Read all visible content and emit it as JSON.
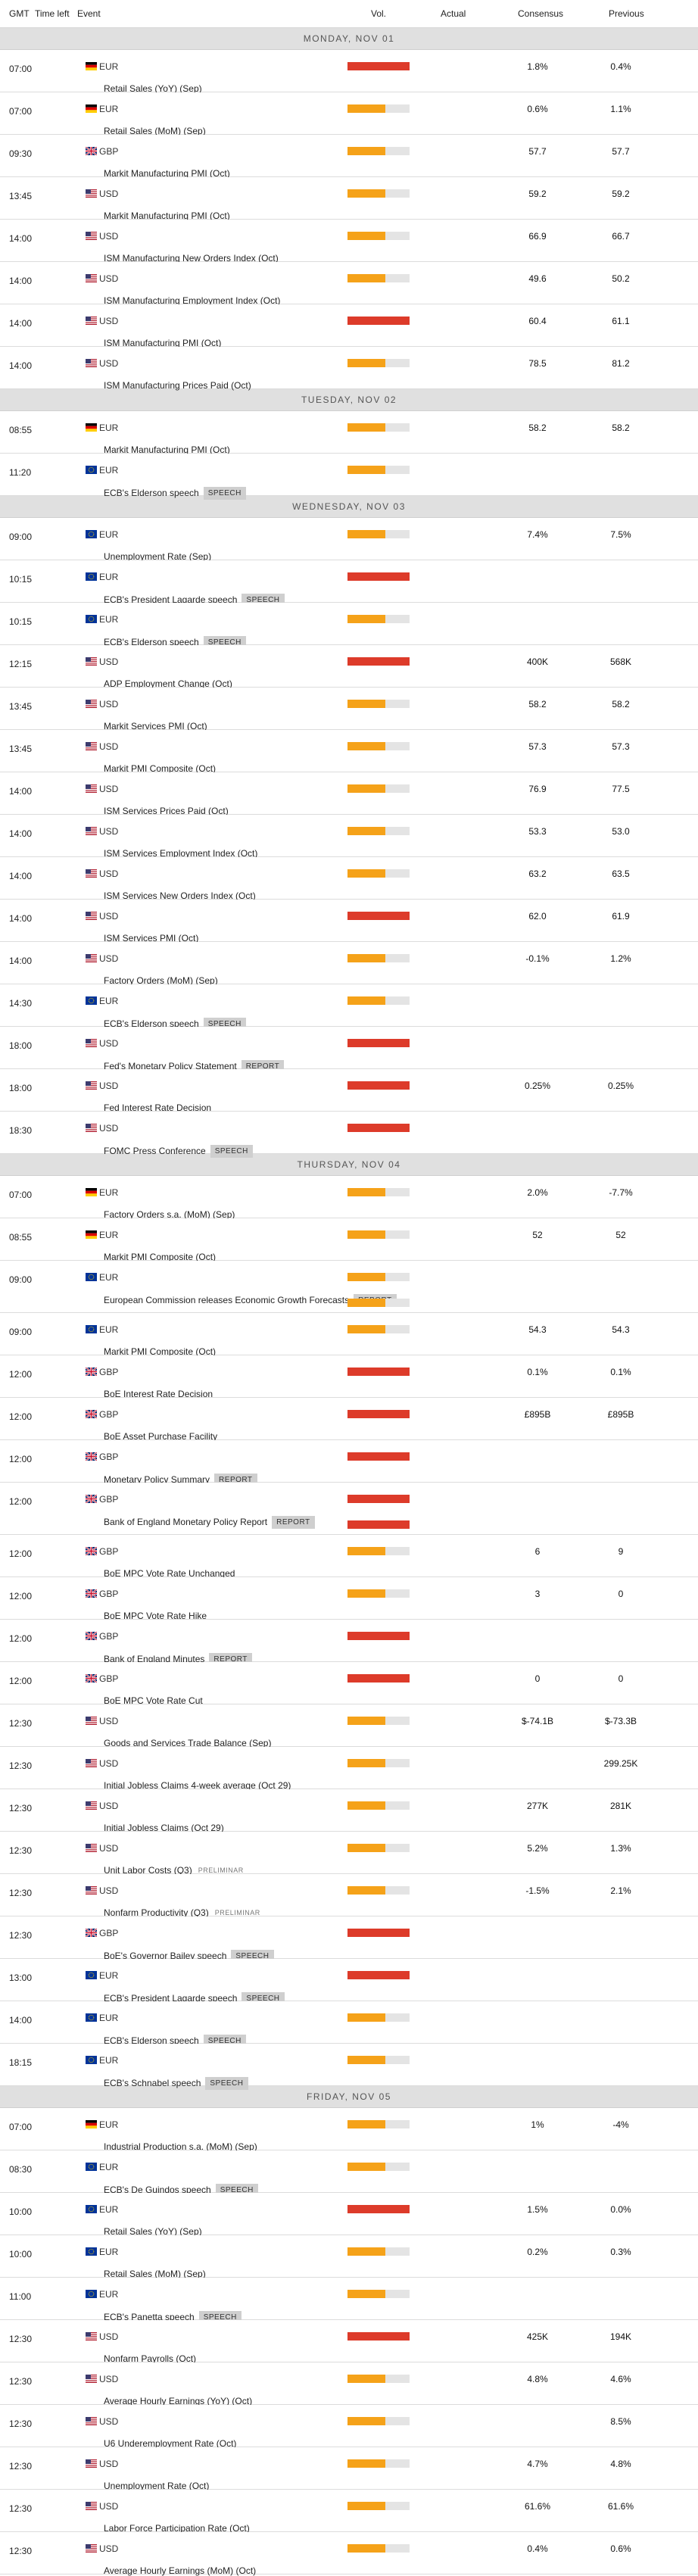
{
  "header": {
    "gmt": "GMT",
    "time_left": "Time left",
    "event": "Event",
    "vol": "Vol.",
    "actual": "Actual",
    "consensus": "Consensus",
    "previous": "Previous"
  },
  "colors": {
    "high": "#dd3b2a",
    "medium": "#f5a219",
    "bar_bg": "#e4e4e4",
    "day_bg": "#e0e0e0"
  },
  "days": [
    {
      "label": "MONDAY, NOV 01",
      "rows": [
        {
          "time": "07:00",
          "cur": "EUR",
          "flag": "de",
          "event": "Retail Sales (YoY) (Sep)",
          "vol": "high",
          "cons": "1.8%",
          "prev": "0.4%"
        },
        {
          "time": "07:00",
          "cur": "EUR",
          "flag": "de",
          "event": "Retail Sales (MoM) (Sep)",
          "vol": "med",
          "cons": "0.6%",
          "prev": "1.1%"
        },
        {
          "time": "09:30",
          "cur": "GBP",
          "flag": "gb",
          "event": "Markit Manufacturing PMI (Oct)",
          "vol": "med",
          "cons": "57.7",
          "prev": "57.7"
        },
        {
          "time": "13:45",
          "cur": "USD",
          "flag": "us",
          "event": "Markit Manufacturing PMI (Oct)",
          "vol": "med",
          "cons": "59.2",
          "prev": "59.2"
        },
        {
          "time": "14:00",
          "cur": "USD",
          "flag": "us",
          "event": "ISM Manufacturing New Orders Index (Oct)",
          "vol": "med",
          "cons": "66.9",
          "prev": "66.7"
        },
        {
          "time": "14:00",
          "cur": "USD",
          "flag": "us",
          "event": "ISM Manufacturing Employment Index (Oct)",
          "vol": "med",
          "cons": "49.6",
          "prev": "50.2"
        },
        {
          "time": "14:00",
          "cur": "USD",
          "flag": "us",
          "event": "ISM Manufacturing PMI (Oct)",
          "vol": "high",
          "cons": "60.4",
          "prev": "61.1"
        },
        {
          "time": "14:00",
          "cur": "USD",
          "flag": "us",
          "event": "ISM Manufacturing Prices Paid (Oct)",
          "vol": "med",
          "cons": "78.5",
          "prev": "81.2"
        }
      ]
    },
    {
      "label": "TUESDAY, NOV 02",
      "rows": [
        {
          "time": "08:55",
          "cur": "EUR",
          "flag": "de",
          "event": "Markit Manufacturing PMI (Oct)",
          "vol": "med",
          "cons": "58.2",
          "prev": "58.2"
        },
        {
          "time": "11:20",
          "cur": "EUR",
          "flag": "eu",
          "event": "ECB's Elderson speech",
          "tag": "SPEECH",
          "vol": "med",
          "cons": "",
          "prev": ""
        }
      ]
    },
    {
      "label": "WEDNESDAY, NOV 03",
      "rows": [
        {
          "time": "09:00",
          "cur": "EUR",
          "flag": "eu",
          "event": "Unemployment Rate (Sep)",
          "vol": "med",
          "cons": "7.4%",
          "prev": "7.5%"
        },
        {
          "time": "10:15",
          "cur": "EUR",
          "flag": "eu",
          "event": "ECB's President Lagarde speech",
          "tag": "SPEECH",
          "vol": "high",
          "cons": "",
          "prev": ""
        },
        {
          "time": "10:15",
          "cur": "EUR",
          "flag": "eu",
          "event": "ECB's Elderson speech",
          "tag": "SPEECH",
          "vol": "med",
          "cons": "",
          "prev": ""
        },
        {
          "time": "12:15",
          "cur": "USD",
          "flag": "us",
          "event": "ADP Employment Change (Oct)",
          "vol": "high",
          "cons": "400K",
          "prev": "568K"
        },
        {
          "time": "13:45",
          "cur": "USD",
          "flag": "us",
          "event": "Markit Services PMI (Oct)",
          "vol": "med",
          "cons": "58.2",
          "prev": "58.2"
        },
        {
          "time": "13:45",
          "cur": "USD",
          "flag": "us",
          "event": "Markit PMI Composite (Oct)",
          "vol": "med",
          "cons": "57.3",
          "prev": "57.3"
        },
        {
          "time": "14:00",
          "cur": "USD",
          "flag": "us",
          "event": "ISM Services Prices Paid (Oct)",
          "vol": "med",
          "cons": "76.9",
          "prev": "77.5"
        },
        {
          "time": "14:00",
          "cur": "USD",
          "flag": "us",
          "event": "ISM Services Employment Index (Oct)",
          "vol": "med",
          "cons": "53.3",
          "prev": "53.0"
        },
        {
          "time": "14:00",
          "cur": "USD",
          "flag": "us",
          "event": "ISM Services New Orders Index (Oct)",
          "vol": "med",
          "cons": "63.2",
          "prev": "63.5"
        },
        {
          "time": "14:00",
          "cur": "USD",
          "flag": "us",
          "event": "ISM Services PMI (Oct)",
          "vol": "high",
          "cons": "62.0",
          "prev": "61.9"
        },
        {
          "time": "14:00",
          "cur": "USD",
          "flag": "us",
          "event": "Factory Orders (MoM) (Sep)",
          "vol": "med",
          "cons": "-0.1%",
          "prev": "1.2%"
        },
        {
          "time": "14:30",
          "cur": "EUR",
          "flag": "eu",
          "event": "ECB's Elderson speech",
          "tag": "SPEECH",
          "vol": "med",
          "cons": "",
          "prev": ""
        },
        {
          "time": "18:00",
          "cur": "USD",
          "flag": "us",
          "event": "Fed's Monetary Policy Statement",
          "tag": "REPORT",
          "vol": "high",
          "cons": "",
          "prev": ""
        },
        {
          "time": "18:00",
          "cur": "USD",
          "flag": "us",
          "event": "Fed Interest Rate Decision",
          "vol": "high",
          "cons": "0.25%",
          "prev": "0.25%"
        },
        {
          "time": "18:30",
          "cur": "USD",
          "flag": "us",
          "event": "FOMC Press Conference",
          "tag": "SPEECH",
          "vol": "high",
          "cons": "",
          "prev": ""
        }
      ]
    },
    {
      "label": "THURSDAY, NOV 04",
      "rows": [
        {
          "time": "07:00",
          "cur": "EUR",
          "flag": "de",
          "event": "Factory Orders s.a. (MoM) (Sep)",
          "vol": "med",
          "cons": "2.0%",
          "prev": "-7.7%"
        },
        {
          "time": "08:55",
          "cur": "EUR",
          "flag": "de",
          "event": "Markit PMI Composite (Oct)",
          "vol": "med",
          "cons": "52",
          "prev": "52"
        },
        {
          "time": "09:00",
          "cur": "EUR",
          "flag": "eu",
          "event": "European Commission releases Economic Growth Forecasts",
          "tag": "REPORT",
          "vol": "med",
          "cons": "",
          "prev": ""
        },
        {
          "time": "09:00",
          "cur": "EUR",
          "flag": "eu",
          "event": "Markit PMI Composite (Oct)",
          "vol": "med",
          "cons": "54.3",
          "prev": "54.3"
        },
        {
          "time": "12:00",
          "cur": "GBP",
          "flag": "gb",
          "event": "BoE Interest Rate Decision",
          "vol": "high",
          "cons": "0.1%",
          "prev": "0.1%"
        },
        {
          "time": "12:00",
          "cur": "GBP",
          "flag": "gb",
          "event": "BoE Asset Purchase Facility",
          "vol": "high",
          "cons": "£895B",
          "prev": "£895B"
        },
        {
          "time": "12:00",
          "cur": "GBP",
          "flag": "gb",
          "event": "Monetary Policy Summary",
          "tag": "REPORT",
          "vol": "high",
          "cons": "",
          "prev": ""
        },
        {
          "time": "12:00",
          "cur": "GBP",
          "flag": "gb",
          "event": "Bank of England Monetary Policy Report",
          "tag": "REPORT",
          "vol": "high",
          "cons": "",
          "prev": ""
        },
        {
          "time": "12:00",
          "cur": "GBP",
          "flag": "gb",
          "event": "BoE MPC Vote Rate Unchanged",
          "vol": "med",
          "cons": "6",
          "prev": "9"
        },
        {
          "time": "12:00",
          "cur": "GBP",
          "flag": "gb",
          "event": "BoE MPC Vote Rate Hike",
          "vol": "med",
          "cons": "3",
          "prev": "0"
        },
        {
          "time": "12:00",
          "cur": "GBP",
          "flag": "gb",
          "event": "Bank of England Minutes",
          "tag": "REPORT",
          "vol": "high",
          "cons": "",
          "prev": ""
        },
        {
          "time": "12:00",
          "cur": "GBP",
          "flag": "gb",
          "event": "BoE MPC Vote Rate Cut",
          "vol": "high",
          "cons": "0",
          "prev": "0"
        },
        {
          "time": "12:30",
          "cur": "USD",
          "flag": "us",
          "event": "Goods and Services Trade Balance (Sep)",
          "vol": "med",
          "cons": "$-74.1B",
          "prev": "$-73.3B"
        },
        {
          "time": "12:30",
          "cur": "USD",
          "flag": "us",
          "event": "Initial Jobless Claims 4-week average (Oct 29)",
          "vol": "med",
          "cons": "",
          "prev": "299.25K"
        },
        {
          "time": "12:30",
          "cur": "USD",
          "flag": "us",
          "event": "Initial Jobless Claims (Oct 29)",
          "vol": "med",
          "cons": "277K",
          "prev": "281K"
        },
        {
          "time": "12:30",
          "cur": "USD",
          "flag": "us",
          "event": "Unit Labor Costs (Q3)",
          "tagp": "PRELIMINAR",
          "vol": "med",
          "cons": "5.2%",
          "prev": "1.3%"
        },
        {
          "time": "12:30",
          "cur": "USD",
          "flag": "us",
          "event": "Nonfarm Productivity (Q3)",
          "tagp": "PRELIMINAR",
          "vol": "med",
          "cons": "-1.5%",
          "prev": "2.1%"
        },
        {
          "time": "12:30",
          "cur": "GBP",
          "flag": "gb",
          "event": "BoE's Governor Bailey speech",
          "tag": "SPEECH",
          "vol": "high",
          "cons": "",
          "prev": ""
        },
        {
          "time": "13:00",
          "cur": "EUR",
          "flag": "eu",
          "event": "ECB's President Lagarde speech",
          "tag": "SPEECH",
          "vol": "high",
          "cons": "",
          "prev": ""
        },
        {
          "time": "14:00",
          "cur": "EUR",
          "flag": "eu",
          "event": "ECB's Elderson speech",
          "tag": "SPEECH",
          "vol": "med",
          "cons": "",
          "prev": ""
        },
        {
          "time": "18:15",
          "cur": "EUR",
          "flag": "eu",
          "event": "ECB's Schnabel speech",
          "tag": "SPEECH",
          "vol": "med",
          "cons": "",
          "prev": ""
        }
      ]
    },
    {
      "label": "FRIDAY, NOV 05",
      "rows": [
        {
          "time": "07:00",
          "cur": "EUR",
          "flag": "de",
          "event": "Industrial Production s.a. (MoM) (Sep)",
          "vol": "med",
          "cons": "1%",
          "prev": "-4%"
        },
        {
          "time": "08:30",
          "cur": "EUR",
          "flag": "eu",
          "event": "ECB's De Guindos speech",
          "tag": "SPEECH",
          "vol": "med",
          "cons": "",
          "prev": ""
        },
        {
          "time": "10:00",
          "cur": "EUR",
          "flag": "eu",
          "event": "Retail Sales (YoY) (Sep)",
          "vol": "high",
          "cons": "1.5%",
          "prev": "0.0%"
        },
        {
          "time": "10:00",
          "cur": "EUR",
          "flag": "eu",
          "event": "Retail Sales (MoM) (Sep)",
          "vol": "med",
          "cons": "0.2%",
          "prev": "0.3%"
        },
        {
          "time": "11:00",
          "cur": "EUR",
          "flag": "eu",
          "event": "ECB's Panetta speech",
          "tag": "SPEECH",
          "vol": "med",
          "cons": "",
          "prev": ""
        },
        {
          "time": "12:30",
          "cur": "USD",
          "flag": "us",
          "event": "Nonfarm Payrolls (Oct)",
          "vol": "high",
          "cons": "425K",
          "prev": "194K"
        },
        {
          "time": "12:30",
          "cur": "USD",
          "flag": "us",
          "event": "Average Hourly Earnings (YoY) (Oct)",
          "vol": "med",
          "cons": "4.8%",
          "prev": "4.6%"
        },
        {
          "time": "12:30",
          "cur": "USD",
          "flag": "us",
          "event": "U6 Underemployment Rate (Oct)",
          "vol": "med",
          "cons": "",
          "prev": "8.5%"
        },
        {
          "time": "12:30",
          "cur": "USD",
          "flag": "us",
          "event": "Unemployment Rate (Oct)",
          "vol": "med",
          "cons": "4.7%",
          "prev": "4.8%"
        },
        {
          "time": "12:30",
          "cur": "USD",
          "flag": "us",
          "event": "Labor Force Participation Rate (Oct)",
          "vol": "med",
          "cons": "61.6%",
          "prev": "61.6%"
        },
        {
          "time": "12:30",
          "cur": "USD",
          "flag": "us",
          "event": "Average Hourly Earnings (MoM) (Oct)",
          "vol": "med",
          "cons": "0.4%",
          "prev": "0.6%"
        }
      ]
    }
  ]
}
